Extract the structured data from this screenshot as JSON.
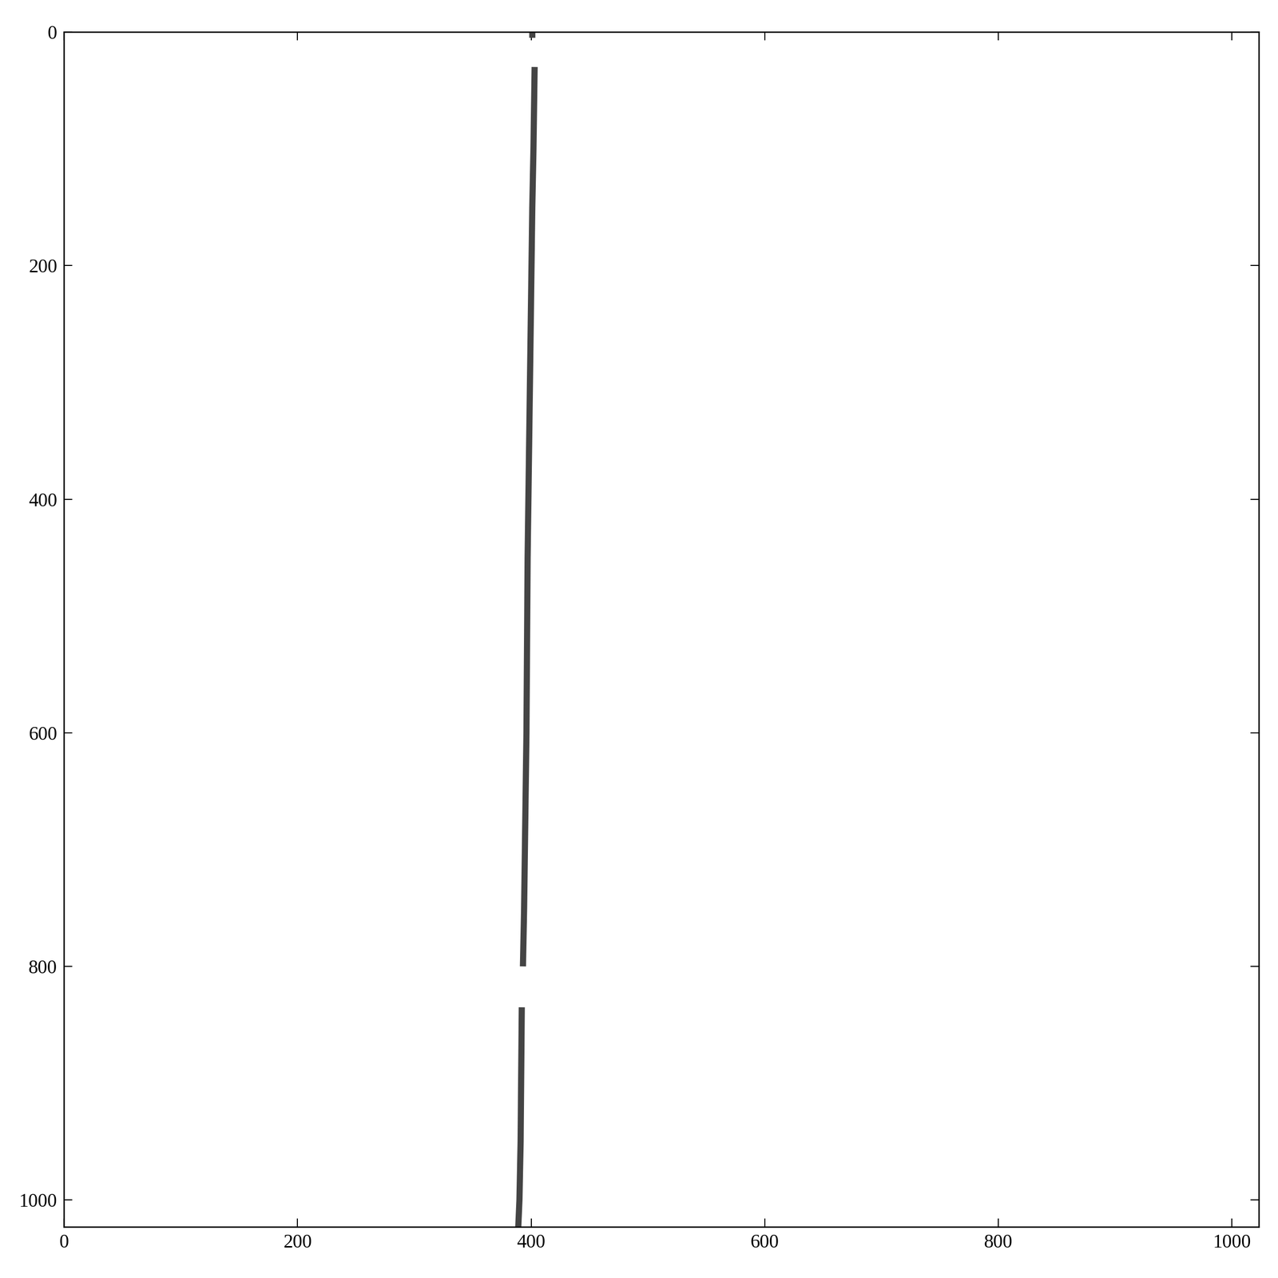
{
  "chart_data": {
    "type": "line",
    "x": [
      401,
      401,
      401,
      403,
      402,
      401,
      399,
      397,
      396,
      394,
      393,
      393,
      392,
      391,
      390,
      389
    ],
    "values": [
      0,
      5,
      null,
      30,
      100,
      150,
      300,
      450,
      600,
      750,
      800,
      null,
      835,
      950,
      1000,
      1023
    ],
    "color": "#444444",
    "xlim": [
      0,
      1023
    ],
    "ylim": [
      1023,
      0
    ],
    "xticks": [
      0,
      200,
      400,
      600,
      800,
      1000
    ],
    "yticks": [
      0,
      200,
      400,
      600,
      800,
      1000
    ]
  }
}
